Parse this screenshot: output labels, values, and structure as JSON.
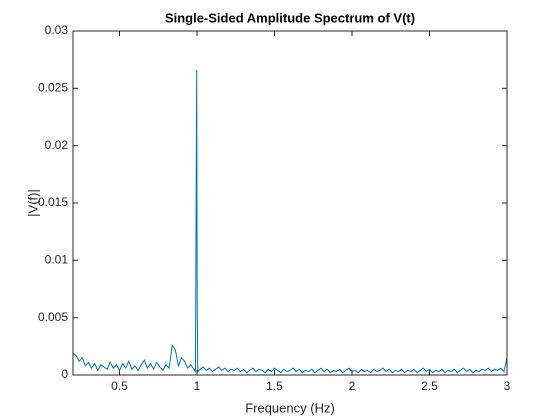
{
  "chart_data": {
    "type": "line",
    "title": "Single-Sided Amplitude Spectrum of V(t)",
    "x_label": "Frequency (Hz)",
    "y_label": "|V(f)|",
    "color": "#0072bd",
    "x": [
      0.2,
      0.22,
      0.24,
      0.26,
      0.28,
      0.3,
      0.32,
      0.34,
      0.36,
      0.38,
      0.4,
      0.42,
      0.44,
      0.46,
      0.48,
      0.5,
      0.52,
      0.54,
      0.56,
      0.58,
      0.6,
      0.62,
      0.64,
      0.66,
      0.68,
      0.7,
      0.72,
      0.74,
      0.76,
      0.78,
      0.8,
      0.82,
      0.84,
      0.86,
      0.88,
      0.9,
      0.92,
      0.94,
      0.96,
      0.98,
      0.99,
      0.995,
      0.998,
      1.001,
      1.005,
      1.02,
      1.04,
      1.06,
      1.08,
      1.1,
      1.12,
      1.14,
      1.16,
      1.18,
      1.2,
      1.22,
      1.24,
      1.26,
      1.28,
      1.3,
      1.32,
      1.34,
      1.36,
      1.38,
      1.4,
      1.42,
      1.44,
      1.46,
      1.48,
      1.5,
      1.52,
      1.54,
      1.56,
      1.58,
      1.6,
      1.62,
      1.64,
      1.66,
      1.68,
      1.7,
      1.72,
      1.74,
      1.76,
      1.78,
      1.8,
      1.82,
      1.84,
      1.86,
      1.88,
      1.9,
      1.92,
      1.94,
      1.96,
      1.98,
      2.0,
      2.02,
      2.04,
      2.06,
      2.08,
      2.1,
      2.12,
      2.14,
      2.16,
      2.18,
      2.2,
      2.22,
      2.24,
      2.26,
      2.28,
      2.3,
      2.32,
      2.34,
      2.36,
      2.38,
      2.4,
      2.42,
      2.44,
      2.46,
      2.48,
      2.5,
      2.52,
      2.54,
      2.56,
      2.58,
      2.6,
      2.62,
      2.64,
      2.66,
      2.68,
      2.7,
      2.72,
      2.74,
      2.76,
      2.78,
      2.8,
      2.82,
      2.84,
      2.86,
      2.88,
      2.9,
      2.92,
      2.94,
      2.96,
      2.98,
      3.0
    ],
    "values": [
      0.0019,
      0.0017,
      0.0012,
      0.0015,
      0.0008,
      0.0011,
      0.0006,
      0.001,
      0.0004,
      0.0009,
      0.0007,
      0.0005,
      0.0011,
      0.0006,
      0.0009,
      0.0004,
      0.001,
      0.0006,
      0.0012,
      0.0005,
      0.0008,
      0.0004,
      0.0009,
      0.0013,
      0.0006,
      0.001,
      0.0005,
      0.0011,
      0.0007,
      0.0004,
      0.0009,
      0.0006,
      0.0026,
      0.0022,
      0.0008,
      0.0015,
      0.0012,
      0.0006,
      0.0009,
      0.0005,
      0.0003,
      0.0166,
      0.0266,
      0.0068,
      0.0003,
      0.0005,
      0.0007,
      0.0004,
      0.0006,
      0.0003,
      0.0005,
      0.0007,
      0.0004,
      0.0006,
      0.0003,
      0.0005,
      0.0004,
      0.0006,
      0.0003,
      0.0005,
      0.0002,
      0.0004,
      0.0006,
      0.0003,
      0.0005,
      0.0004,
      0.0002,
      0.0005,
      0.0003,
      0.0006,
      0.0004,
      0.0002,
      0.0005,
      0.0003,
      0.0004,
      0.0006,
      0.0003,
      0.0005,
      0.0002,
      0.0004,
      0.0003,
      0.0005,
      0.0002,
      0.0004,
      0.0006,
      0.0003,
      0.0005,
      0.0002,
      0.0004,
      0.0003,
      0.0005,
      0.0002,
      0.0004,
      0.0006,
      0.0003,
      0.0004,
      0.0002,
      0.0005,
      0.0003,
      0.0004,
      0.0002,
      0.0005,
      0.0003,
      0.0004,
      0.0006,
      0.0003,
      0.0005,
      0.0002,
      0.0004,
      0.0003,
      0.0005,
      0.0002,
      0.0004,
      0.0003,
      0.0005,
      0.0002,
      0.0004,
      0.0006,
      0.0003,
      0.0005,
      0.0002,
      0.0004,
      0.0003,
      0.0005,
      0.0002,
      0.0004,
      0.0003,
      0.0005,
      0.0002,
      0.0004,
      0.0006,
      0.0003,
      0.0005,
      0.0002,
      0.0004,
      0.0003,
      0.0005,
      0.0004,
      0.0006,
      0.0003,
      0.0005,
      0.0004,
      0.0006,
      0.0003,
      0.0015
    ],
    "xlim": [
      0.2,
      3
    ],
    "ylim": [
      0,
      0.03
    ],
    "xticks": [
      0.5,
      1,
      1.5,
      2,
      2.5,
      3
    ],
    "yticks": [
      0,
      0.005,
      0.01,
      0.015,
      0.02,
      0.025,
      0.03
    ]
  }
}
